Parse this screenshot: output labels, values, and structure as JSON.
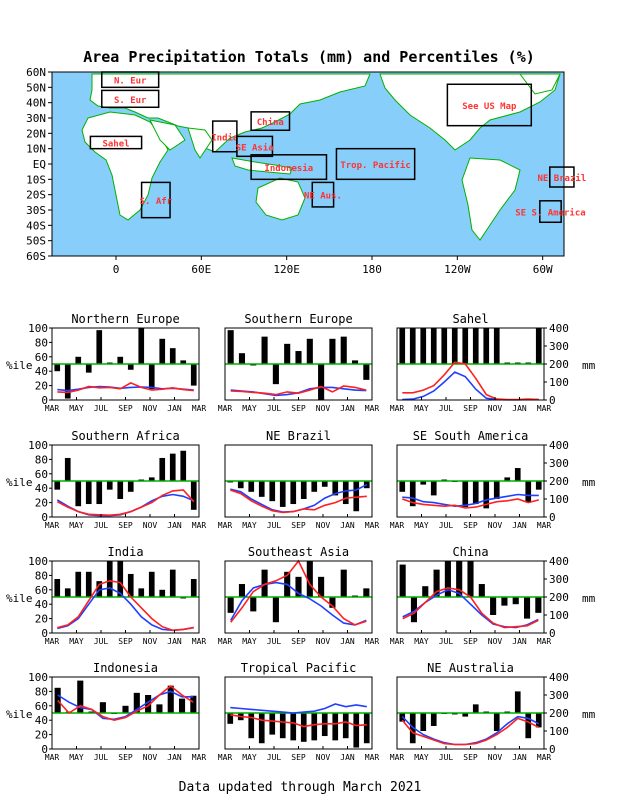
{
  "title": "Area Precipitation Totals (mm) and Percentiles (%)",
  "footer": "Data updated through March 2021",
  "colors": {
    "ocean": "#87cefa",
    "land": "#ffffff",
    "coast": "#00b000",
    "region_label": "#ff3333",
    "percentile_bar": "#000000",
    "line_observed": "#ff2020",
    "line_normal": "#2040ff",
    "median_line": "#00b000"
  },
  "map": {
    "lat_labels": [
      "60N",
      "50N",
      "40N",
      "30N",
      "20N",
      "10N",
      "EQ",
      "10S",
      "20S",
      "30S",
      "40S",
      "50S",
      "60S"
    ],
    "lon_labels": [
      "0",
      "60E",
      "120E",
      "180",
      "120W",
      "60W",
      "0"
    ],
    "regions": [
      {
        "label": "N. Eur",
        "lon": [
          -10,
          30
        ],
        "lat": [
          50,
          60
        ]
      },
      {
        "label": "S. Eur",
        "lon": [
          -10,
          30
        ],
        "lat": [
          37,
          48
        ]
      },
      {
        "label": "Sahel",
        "lon": [
          -18,
          18
        ],
        "lat": [
          10,
          18
        ]
      },
      {
        "label": "India",
        "lon": [
          68,
          85
        ],
        "lat": [
          8,
          28
        ]
      },
      {
        "label": "China",
        "lon": [
          95,
          122
        ],
        "lat": [
          22,
          34
        ]
      },
      {
        "label": "SE Asia",
        "lon": [
          85,
          110
        ],
        "lat": [
          5,
          18
        ]
      },
      {
        "label": "Indonesia",
        "lon": [
          95,
          148
        ],
        "lat": [
          -10,
          6
        ]
      },
      {
        "label": "Trop. Pacific",
        "lon": [
          155,
          210
        ],
        "lat": [
          -10,
          10
        ]
      },
      {
        "label": "NE Aus.",
        "lon": [
          138,
          153
        ],
        "lat": [
          -28,
          -12
        ]
      },
      {
        "label": "See US Map",
        "lon": [
          233,
          292
        ],
        "lat": [
          25,
          52
        ]
      },
      {
        "label": "NE Brazil",
        "lon": [
          305,
          322
        ],
        "lat": [
          -15,
          -2
        ]
      },
      {
        "label": "S. Afr",
        "lon": [
          18,
          38
        ],
        "lat": [
          -35,
          -12
        ]
      },
      {
        "label": "SE S. America",
        "lon": [
          298,
          313
        ],
        "lat": [
          -38,
          -24
        ]
      }
    ]
  },
  "chart_data": [
    {
      "type": "bar",
      "title": "Northern Europe",
      "months": [
        "MAR",
        "MAY",
        "JUL",
        "SEP",
        "NOV",
        "JAN",
        "MAR"
      ],
      "percentile_ticks": [
        0,
        20,
        40,
        60,
        80,
        100
      ],
      "mm_ticks": [
        0,
        100,
        200,
        300,
        400
      ],
      "ylabel_left": "%ile",
      "ylabel_right": "mm",
      "ylim_pct": [
        0,
        100
      ],
      "ylim_mm": [
        0,
        400
      ],
      "percentiles": [
        40,
        2,
        60,
        38,
        97,
        52,
        60,
        42,
        100,
        15,
        85,
        72,
        55,
        20
      ],
      "obs_mm": [
        45,
        42,
        55,
        75,
        68,
        70,
        62,
        95,
        70,
        55,
        60,
        68,
        58,
        52
      ],
      "normal_mm": [
        58,
        52,
        60,
        70,
        75,
        72,
        65,
        70,
        72,
        70,
        62,
        65,
        60,
        55
      ]
    },
    {
      "type": "bar",
      "title": "Southern Europe",
      "months": [
        "MAR",
        "MAY",
        "JUL",
        "SEP",
        "NOV",
        "JAN",
        "MAR"
      ],
      "percentile_ticks": [
        0,
        20,
        40,
        60,
        80,
        100
      ],
      "mm_ticks": [
        0,
        100,
        200,
        300,
        400
      ],
      "ylabel_left": "%ile",
      "ylabel_right": "mm",
      "ylim_pct": [
        0,
        100
      ],
      "ylim_mm": [
        0,
        400
      ],
      "percentiles": [
        97,
        65,
        48,
        88,
        22,
        78,
        68,
        85,
        0,
        85,
        88,
        55,
        28
      ],
      "obs_mm": [
        50,
        48,
        42,
        38,
        30,
        45,
        38,
        55,
        75,
        45,
        78,
        70,
        55
      ],
      "normal_mm": [
        55,
        50,
        45,
        35,
        25,
        30,
        40,
        62,
        70,
        70,
        62,
        55,
        52
      ]
    },
    {
      "type": "bar",
      "title": "Sahel",
      "months": [
        "MAR",
        "MAY",
        "JUL",
        "SEP",
        "NOV",
        "JAN",
        "MAR"
      ],
      "percentile_ticks": [
        0,
        20,
        40,
        60,
        80,
        100
      ],
      "mm_ticks": [
        0,
        100,
        200,
        300,
        400
      ],
      "ylabel_left": "%ile",
      "ylabel_right": "mm",
      "ylim_pct": [
        0,
        100
      ],
      "ylim_mm": [
        0,
        400
      ],
      "percentiles": [
        100,
        100,
        100,
        100,
        100,
        100,
        100,
        100,
        100,
        100,
        52,
        52,
        52,
        100
      ],
      "obs_mm": [
        40,
        40,
        55,
        80,
        140,
        210,
        200,
        120,
        30,
        5,
        2,
        2,
        5,
        2
      ],
      "normal_mm": [
        3,
        5,
        20,
        50,
        100,
        155,
        130,
        60,
        10,
        2,
        1,
        1,
        2,
        2
      ]
    },
    {
      "type": "bar",
      "title": "Southern Africa",
      "months": [
        "MAR",
        "MAY",
        "JUL",
        "SEP",
        "NOV",
        "JAN",
        "MAR"
      ],
      "percentile_ticks": [
        0,
        20,
        40,
        60,
        80,
        100
      ],
      "mm_ticks": [
        0,
        100,
        200,
        300,
        400
      ],
      "ylabel_left": "%ile",
      "ylabel_right": "mm",
      "ylim_pct": [
        0,
        100
      ],
      "ylim_mm": [
        0,
        400
      ],
      "percentiles": [
        38,
        82,
        15,
        18,
        18,
        38,
        25,
        35,
        52,
        55,
        82,
        88,
        92,
        10
      ],
      "obs_mm": [
        85,
        55,
        30,
        15,
        12,
        10,
        15,
        30,
        55,
        80,
        120,
        145,
        150,
        85
      ],
      "normal_mm": [
        95,
        60,
        30,
        12,
        8,
        8,
        12,
        30,
        55,
        90,
        115,
        125,
        115,
        90
      ]
    },
    {
      "type": "bar",
      "title": "NE Brazil",
      "months": [
        "MAR",
        "MAY",
        "JUL",
        "SEP",
        "NOV",
        "JAN",
        "MAR"
      ],
      "percentile_ticks": [
        0,
        20,
        40,
        60,
        80,
        100
      ],
      "mm_ticks": [
        0,
        100,
        200,
        300,
        400
      ],
      "ylabel_left": "%ile",
      "ylabel_right": "mm",
      "ylim_pct": [
        0,
        100
      ],
      "ylim_mm": [
        0,
        400
      ],
      "percentiles": [
        48,
        40,
        35,
        28,
        22,
        14,
        18,
        25,
        35,
        42,
        30,
        18,
        8,
        40
      ],
      "obs_mm": [
        150,
        130,
        90,
        60,
        35,
        25,
        30,
        45,
        40,
        65,
        80,
        105,
        110,
        115
      ],
      "normal_mm": [
        155,
        140,
        100,
        70,
        40,
        28,
        30,
        45,
        65,
        105,
        130,
        145,
        150,
        180
      ]
    },
    {
      "type": "bar",
      "title": "SE South America",
      "months": [
        "MAR",
        "MAY",
        "JUL",
        "SEP",
        "NOV",
        "JAN",
        "MAR"
      ],
      "percentile_ticks": [
        0,
        20,
        40,
        60,
        80,
        100
      ],
      "mm_ticks": [
        0,
        100,
        200,
        300,
        400
      ],
      "ylabel_left": "%ile",
      "ylabel_right": "mm",
      "ylim_pct": [
        0,
        100
      ],
      "ylim_mm": [
        0,
        400
      ],
      "percentiles": [
        35,
        15,
        45,
        30,
        52,
        50,
        14,
        18,
        12,
        25,
        55,
        68,
        20,
        38
      ],
      "obs_mm": [
        100,
        80,
        70,
        65,
        60,
        65,
        50,
        55,
        70,
        85,
        90,
        100,
        80,
        95
      ],
      "normal_mm": [
        110,
        105,
        85,
        80,
        70,
        60,
        65,
        75,
        95,
        105,
        115,
        125,
        120,
        120
      ]
    },
    {
      "type": "bar",
      "title": "India",
      "months": [
        "MAR",
        "MAY",
        "JUL",
        "SEP",
        "NOV",
        "JAN",
        "MAR"
      ],
      "percentile_ticks": [
        0,
        20,
        40,
        60,
        80,
        100
      ],
      "mm_ticks": [
        0,
        100,
        200,
        300,
        400
      ],
      "ylabel_left": "%ile",
      "ylabel_right": "mm",
      "ylim_pct": [
        0,
        100
      ],
      "ylim_mm": [
        0,
        400
      ],
      "percentiles": [
        75,
        62,
        85,
        85,
        72,
        100,
        100,
        82,
        62,
        85,
        60,
        88,
        48,
        75
      ],
      "obs_mm": [
        30,
        45,
        90,
        180,
        270,
        290,
        280,
        200,
        140,
        80,
        35,
        15,
        20,
        30
      ],
      "normal_mm": [
        25,
        40,
        80,
        160,
        240,
        250,
        220,
        160,
        90,
        45,
        20,
        15,
        20,
        30
      ]
    },
    {
      "type": "bar",
      "title": "Southeast Asia",
      "months": [
        "MAR",
        "MAY",
        "JUL",
        "SEP",
        "NOV",
        "JAN",
        "MAR"
      ],
      "percentile_ticks": [
        0,
        20,
        40,
        60,
        80,
        100
      ],
      "mm_ticks": [
        0,
        100,
        200,
        300,
        400
      ],
      "ylabel_left": "%ile",
      "ylabel_right": "mm",
      "ylim_pct": [
        0,
        100
      ],
      "ylim_mm": [
        0,
        400
      ],
      "percentiles": [
        28,
        68,
        30,
        88,
        15,
        85,
        78,
        100,
        78,
        35,
        88,
        52,
        62
      ],
      "obs_mm": [
        60,
        140,
        230,
        270,
        290,
        320,
        400,
        270,
        200,
        150,
        80,
        45,
        65
      ],
      "normal_mm": [
        70,
        180,
        250,
        270,
        280,
        270,
        220,
        190,
        150,
        100,
        55,
        45,
        70
      ]
    },
    {
      "type": "bar",
      "title": "China",
      "months": [
        "MAR",
        "MAY",
        "JUL",
        "SEP",
        "NOV",
        "JAN",
        "MAR"
      ],
      "percentile_ticks": [
        0,
        20,
        40,
        60,
        80,
        100
      ],
      "mm_ticks": [
        0,
        100,
        200,
        300,
        400
      ],
      "ylabel_left": "%ile",
      "ylabel_right": "mm",
      "ylim_pct": [
        0,
        100
      ],
      "ylim_mm": [
        0,
        400
      ],
      "percentiles": [
        95,
        15,
        65,
        88,
        100,
        100,
        100,
        68,
        25,
        38,
        40,
        20,
        28
      ],
      "obs_mm": [
        80,
        110,
        170,
        230,
        250,
        240,
        200,
        110,
        55,
        30,
        35,
        40,
        70
      ],
      "normal_mm": [
        90,
        120,
        170,
        210,
        240,
        220,
        160,
        100,
        50,
        35,
        30,
        45,
        75
      ]
    },
    {
      "type": "bar",
      "title": "Indonesia",
      "months": [
        "MAR",
        "MAY",
        "JUL",
        "SEP",
        "NOV",
        "JAN",
        "MAR"
      ],
      "percentile_ticks": [
        0,
        20,
        40,
        60,
        80,
        100
      ],
      "mm_ticks": [
        0,
        100,
        200,
        300,
        400
      ],
      "ylabel_left": "%ile",
      "ylabel_right": "mm",
      "ylim_pct": [
        0,
        100
      ],
      "ylim_mm": [
        0,
        400
      ],
      "percentiles": [
        85,
        52,
        95,
        52,
        65,
        50,
        60,
        78,
        75,
        62,
        88,
        70,
        74
      ],
      "obs_mm": [
        270,
        200,
        240,
        220,
        180,
        160,
        175,
        210,
        240,
        300,
        350,
        300,
        260
      ],
      "normal_mm": [
        300,
        260,
        230,
        220,
        170,
        165,
        180,
        220,
        260,
        300,
        320,
        290,
        290
      ]
    },
    {
      "type": "bar",
      "title": "Tropical Pacific",
      "months": [
        "MAR",
        "MAY",
        "JUL",
        "SEP",
        "NOV",
        "JAN",
        "MAR"
      ],
      "percentile_ticks": [
        0,
        20,
        40,
        60,
        80,
        100
      ],
      "mm_ticks": [
        0,
        100,
        200,
        300,
        400
      ],
      "ylabel_left": "%ile",
      "ylabel_right": "mm",
      "ylim_pct": [
        0,
        100
      ],
      "ylim_mm": [
        0,
        400
      ],
      "percentiles": [
        35,
        40,
        15,
        8,
        20,
        15,
        12,
        10,
        12,
        18,
        12,
        15,
        2,
        8
      ],
      "obs_mm": [
        190,
        180,
        175,
        160,
        155,
        150,
        145,
        125,
        135,
        140,
        140,
        150,
        130,
        135
      ],
      "normal_mm": [
        230,
        225,
        220,
        215,
        210,
        205,
        200,
        205,
        210,
        225,
        250,
        235,
        245,
        235
      ]
    },
    {
      "type": "bar",
      "title": "NE Australia",
      "months": [
        "MAR",
        "MAY",
        "JUL",
        "SEP",
        "NOV",
        "JAN",
        "MAR"
      ],
      "percentile_ticks": [
        0,
        20,
        40,
        60,
        80,
        100
      ],
      "mm_ticks": [
        0,
        100,
        200,
        300,
        400
      ],
      "ylabel_left": "%ile",
      "ylabel_right": "mm",
      "ylim_pct": [
        0,
        100
      ],
      "ylim_mm": [
        0,
        400
      ],
      "percentiles": [
        38,
        8,
        25,
        32,
        50,
        48,
        45,
        62,
        52,
        25,
        52,
        80,
        15,
        30
      ],
      "obs_mm": [
        160,
        90,
        70,
        50,
        30,
        25,
        25,
        30,
        50,
        80,
        120,
        170,
        150,
        120
      ],
      "normal_mm": [
        180,
        120,
        80,
        55,
        35,
        25,
        25,
        35,
        55,
        90,
        140,
        180,
        170,
        140
      ]
    }
  ]
}
